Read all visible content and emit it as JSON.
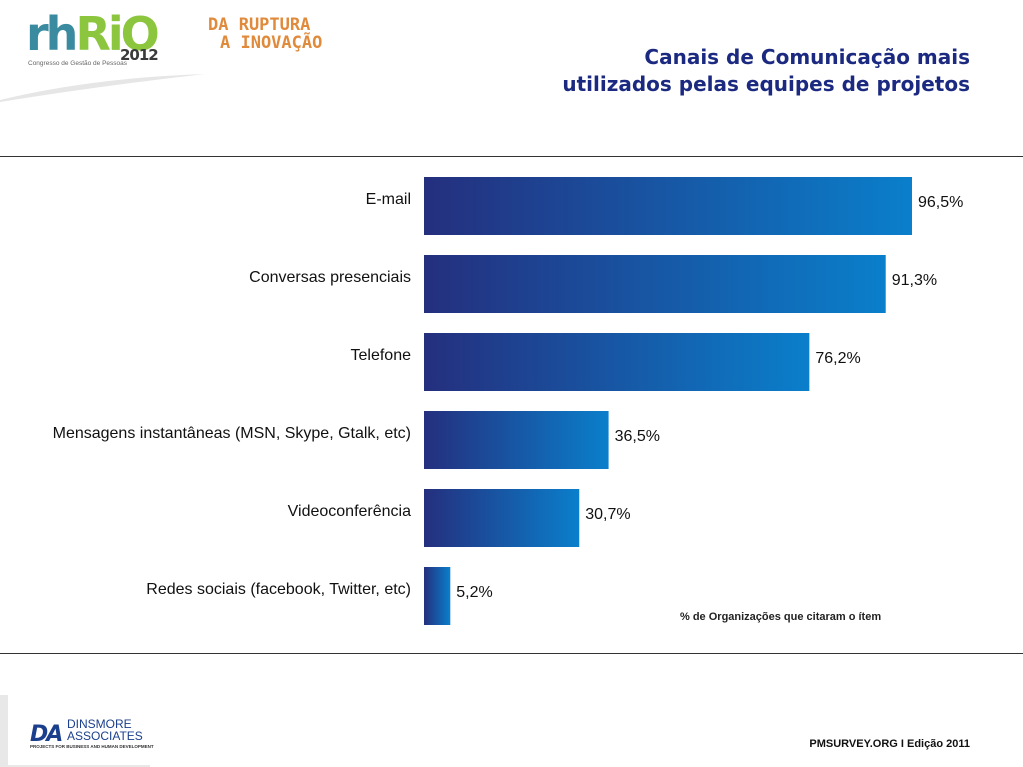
{
  "header": {
    "logo_rh": "rh",
    "logo_rio": "RiO",
    "logo_year": "2012",
    "logo_sub": "Congresso de Gestão de Pessoas",
    "tagline_line1": "DA RUPTURA",
    "tagline_line2": "A INOVAÇÃO",
    "title_line1": "Canais de Comunicação mais",
    "title_line2": "utilizados pelas equipes de projetos"
  },
  "chart_data": {
    "type": "bar",
    "orientation": "horizontal",
    "categories": [
      "E-mail",
      "Conversas presenciais",
      "Telefone",
      "Mensagens instantâneas (MSN, Skype, Gtalk, etc)",
      "Videoconferência",
      "Redes sociais (facebook, Twitter, etc)"
    ],
    "values": [
      96.5,
      91.3,
      76.2,
      36.5,
      30.7,
      5.2
    ],
    "value_labels": [
      "96,5%",
      "91,3%",
      "76,2%",
      "36,5%",
      "30,7%",
      "5,2%"
    ],
    "xlabel": "% de Organizações que citaram o ítem",
    "xlim": [
      0,
      100
    ],
    "colors": {
      "bar_start": "#242f7e",
      "bar_end": "#0a7fcb"
    }
  },
  "footer": {
    "company_line1": "DINSMORE",
    "company_line2": "ASSOCIATES",
    "company_mark": "DA",
    "company_tagline": "PROJECTS FOR BUSINESS AND HUMAN DEVELOPMENT",
    "source": "PMSURVEY.ORG I Edição 2011"
  }
}
